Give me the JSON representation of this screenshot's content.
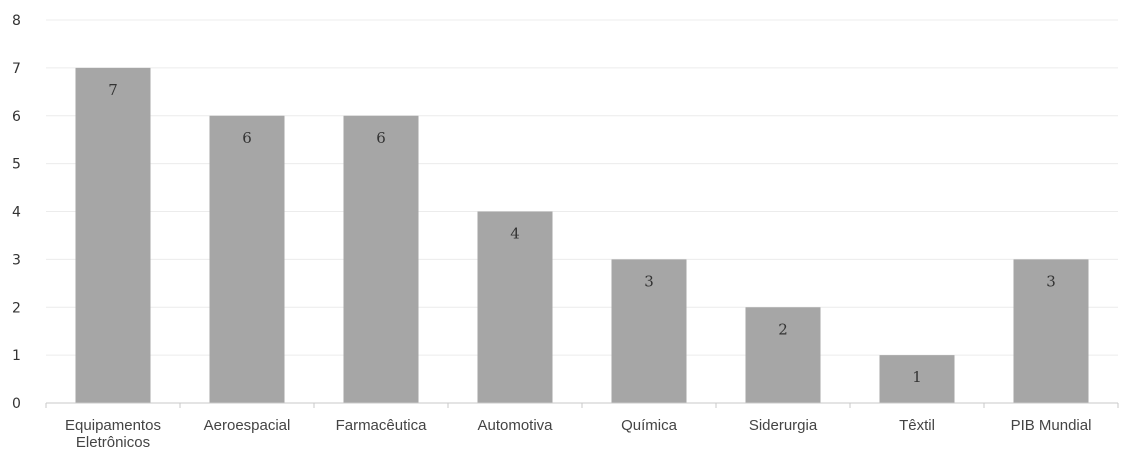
{
  "chart_data": {
    "type": "bar",
    "categories": [
      [
        "Equipamentos",
        "Eletrônicos"
      ],
      [
        "Aeroespacial"
      ],
      [
        "Farmacêutica"
      ],
      [
        "Automotiva"
      ],
      [
        "Química"
      ],
      [
        "Siderurgia"
      ],
      [
        "Têxtil"
      ],
      [
        "PIB Mundial"
      ]
    ],
    "values": [
      7,
      6,
      6,
      4,
      3,
      2,
      1,
      3
    ],
    "ylim": [
      0,
      8
    ],
    "yticks": [
      0,
      1,
      2,
      3,
      4,
      5,
      6,
      7,
      8
    ],
    "grid": true,
    "data_labels": true,
    "bar_color": "#a6a6a6",
    "grid_color": "#ececec",
    "axis_color": "#c8c8c8"
  }
}
